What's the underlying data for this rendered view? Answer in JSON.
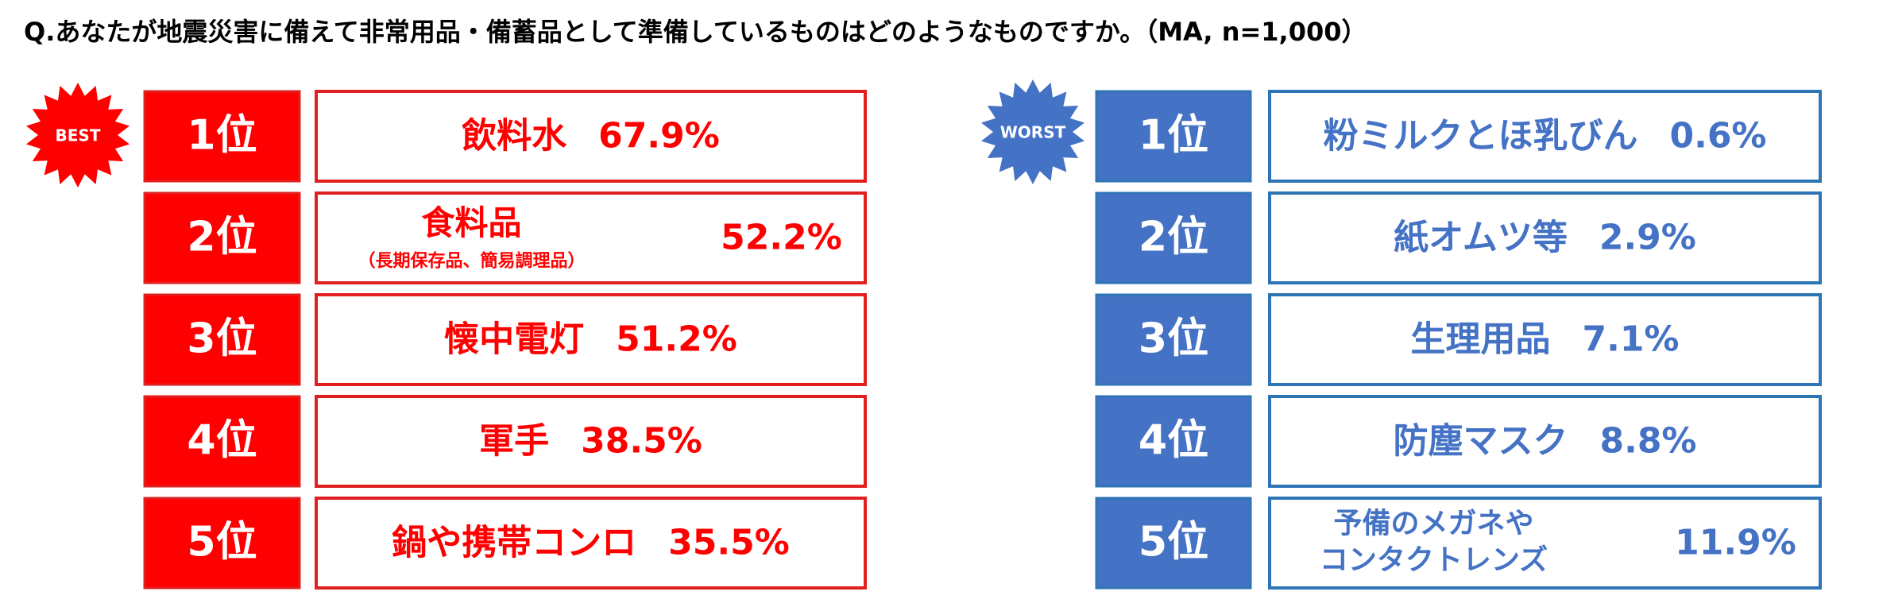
{
  "question": "Q.あなたが地震災害に備えて非常用品・備蓄品として準備しているものはどのようなものですか。（MA, n=1,000）",
  "best": {
    "badge": "BEST",
    "items": [
      {
        "rank": "1位",
        "label": [
          "飲料水"
        ],
        "value": "67.9%"
      },
      {
        "rank": "2位",
        "label": [
          "食料品"
        ],
        "note": "（長期保存品、簡易調理品）",
        "value": "52.2%"
      },
      {
        "rank": "3位",
        "label": [
          "懐中電灯"
        ],
        "value": "51.2%"
      },
      {
        "rank": "4位",
        "label": [
          "軍手"
        ],
        "value": "38.5%"
      },
      {
        "rank": "5位",
        "label": [
          "鍋や携帯コンロ"
        ],
        "value": "35.5%"
      }
    ]
  },
  "worst": {
    "badge": "WORST",
    "items": [
      {
        "rank": "1位",
        "label": [
          "粉ミルクとほ乳びん"
        ],
        "value": "0.6%"
      },
      {
        "rank": "2位",
        "label": [
          "紙オムツ等"
        ],
        "value": "2.9%"
      },
      {
        "rank": "3位",
        "label": [
          "生理用品"
        ],
        "value": "7.1%"
      },
      {
        "rank": "4位",
        "label": [
          "防塵マスク"
        ],
        "value": "8.8%"
      },
      {
        "rank": "5位",
        "label": [
          "予備のメガネや",
          "コンタクトレンズ"
        ],
        "value": "11.9%"
      }
    ]
  }
}
